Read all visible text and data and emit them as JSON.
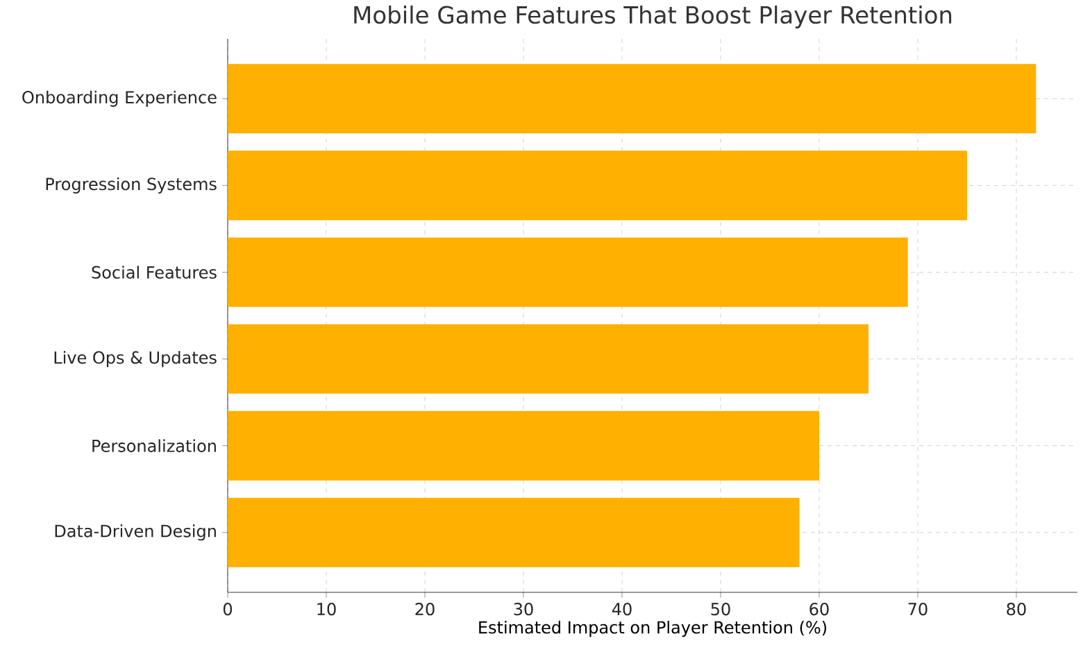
{
  "chart_data": {
    "type": "bar",
    "orientation": "horizontal",
    "title": "Mobile Game Features That Boost Player Retention",
    "xlabel": "Estimated Impact on Player Retention (%)",
    "categories": [
      "Onboarding Experience",
      "Progression Systems",
      "Social Features",
      "Live Ops & Updates",
      "Personalization",
      "Data-Driven Design"
    ],
    "values": [
      82,
      75,
      69,
      65,
      60,
      58
    ],
    "color": "#ffb000",
    "xlim": [
      0,
      86.2
    ],
    "xticks": [
      0,
      10,
      20,
      30,
      40,
      50,
      60,
      70,
      80
    ],
    "grid": true
  }
}
